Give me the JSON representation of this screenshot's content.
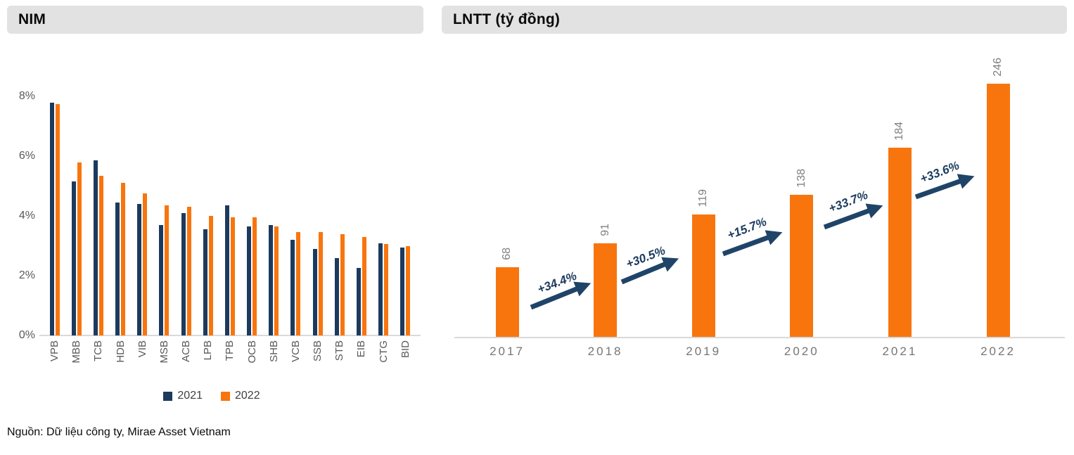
{
  "header_left": {
    "title": "NIM"
  },
  "header_right": {
    "title": "LNTT (tỷ đồng)"
  },
  "source": "Nguồn: Dữ liệu công ty, Mirae Asset Vietnam",
  "colors": {
    "navy": "#1c3a5e",
    "orange": "#f8750e",
    "arrow": "#1f4468",
    "axis": "#d9d9d9",
    "tick_text": "#595959",
    "value_text": "#7f7f7f"
  },
  "chart_data": [
    {
      "type": "bar",
      "title": "NIM",
      "unit": "%",
      "categories": [
        "VPB",
        "MBB",
        "TCB",
        "HDB",
        "VIB",
        "MSB",
        "ACB",
        "LPB",
        "TPB",
        "OCB",
        "SHB",
        "VCB",
        "SSB",
        "STB",
        "EIB",
        "CTG",
        "BID"
      ],
      "series": [
        {
          "name": "2021",
          "color": "#1c3a5e",
          "values": [
            7.8,
            5.15,
            5.85,
            4.45,
            4.4,
            3.7,
            4.1,
            3.55,
            4.35,
            3.65,
            3.7,
            3.2,
            2.9,
            2.6,
            2.25,
            3.08,
            2.95
          ]
        },
        {
          "name": "2022",
          "color": "#f8750e",
          "values": [
            7.75,
            5.8,
            5.35,
            5.1,
            4.75,
            4.35,
            4.3,
            4.0,
            3.95,
            3.95,
            3.65,
            3.45,
            3.45,
            3.4,
            3.3,
            3.05,
            3.0
          ]
        }
      ],
      "y_ticks": [
        {
          "label": "8%",
          "value": 8
        },
        {
          "label": "6%",
          "value": 6
        },
        {
          "label": "4%",
          "value": 4
        },
        {
          "label": "2%",
          "value": 2
        },
        {
          "label": "0%",
          "value": 0
        }
      ],
      "ylim": [
        0,
        8
      ],
      "grid": false,
      "legend_position": "bottom"
    },
    {
      "type": "bar",
      "title": "LNTT (tỷ đồng)",
      "categories": [
        "2017",
        "2018",
        "2019",
        "2020",
        "2021",
        "2022"
      ],
      "values": [
        68,
        91,
        119,
        138,
        184,
        246
      ],
      "bar_color": "#f8750e",
      "growth_arrows": [
        {
          "from": "2017",
          "to": "2018",
          "label": "+34.4%"
        },
        {
          "from": "2018",
          "to": "2019",
          "label": "+30.5%"
        },
        {
          "from": "2019",
          "to": "2020",
          "label": "+15.7%"
        },
        {
          "from": "2020",
          "to": "2021",
          "label": "+33.7%"
        },
        {
          "from": "2021",
          "to": "2022",
          "label": "+33.6%"
        }
      ],
      "grid": false,
      "legend_position": "none"
    }
  ]
}
